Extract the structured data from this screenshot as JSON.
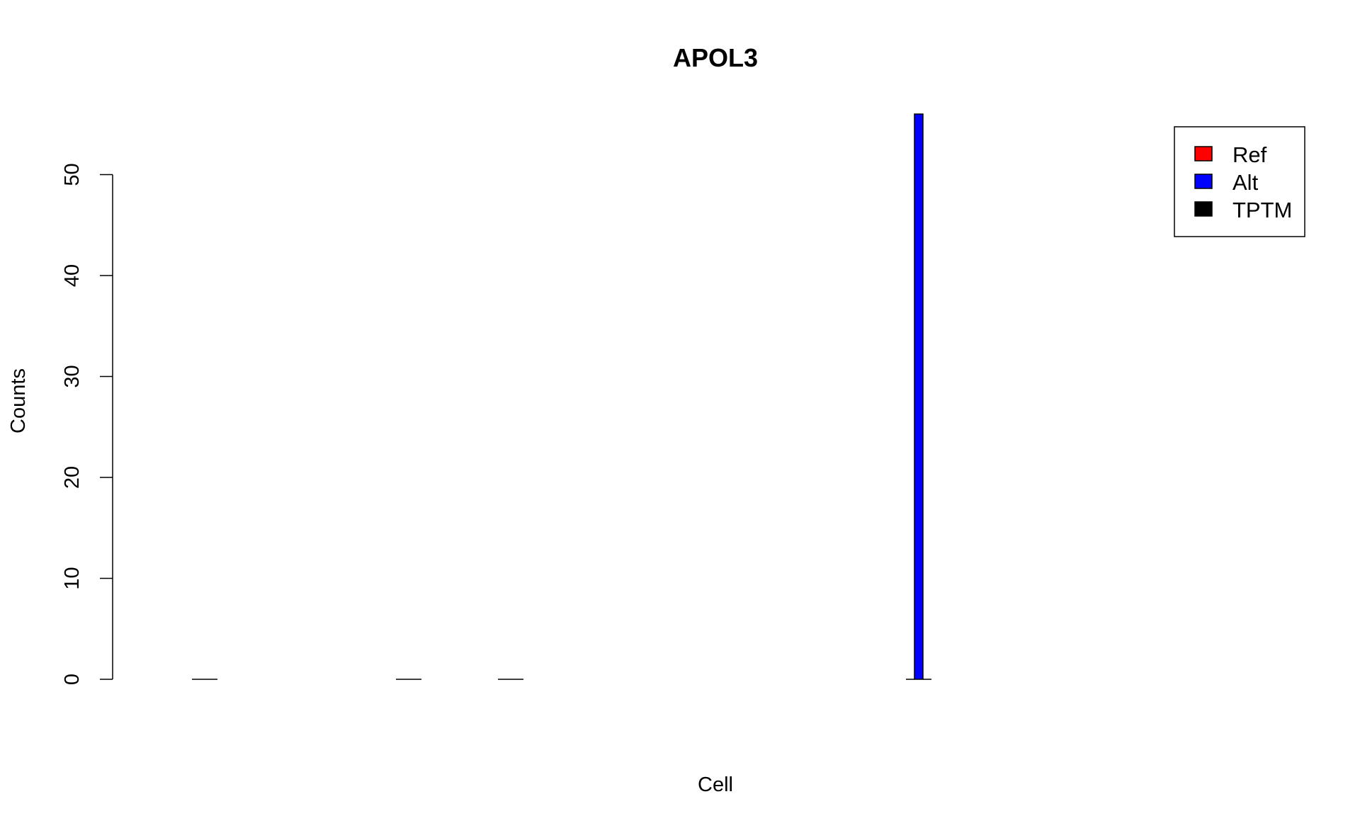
{
  "chart_data": {
    "type": "bar",
    "title": "APOL3",
    "xlabel": "Cell",
    "ylabel": "Counts",
    "yticks": [
      0,
      10,
      20,
      30,
      40,
      50
    ],
    "ylim": [
      0,
      56
    ],
    "grid": false,
    "legend_position": "top-right",
    "legend": [
      {
        "label": "Ref",
        "color": "#ff0000"
      },
      {
        "label": "Alt",
        "color": "#0000ff"
      },
      {
        "label": "TPTM",
        "color": "#000000"
      }
    ],
    "cells": [
      {
        "index": 1,
        "ref": 0,
        "alt": 0,
        "tptm": 0
      },
      {
        "index": 3,
        "ref": 0,
        "alt": 0,
        "tptm": 0
      },
      {
        "index": 4,
        "ref": 0,
        "alt": 0,
        "tptm": 0
      },
      {
        "index": 8,
        "ref": 0,
        "alt": 56,
        "tptm": 0
      }
    ],
    "n_cells": 13
  }
}
